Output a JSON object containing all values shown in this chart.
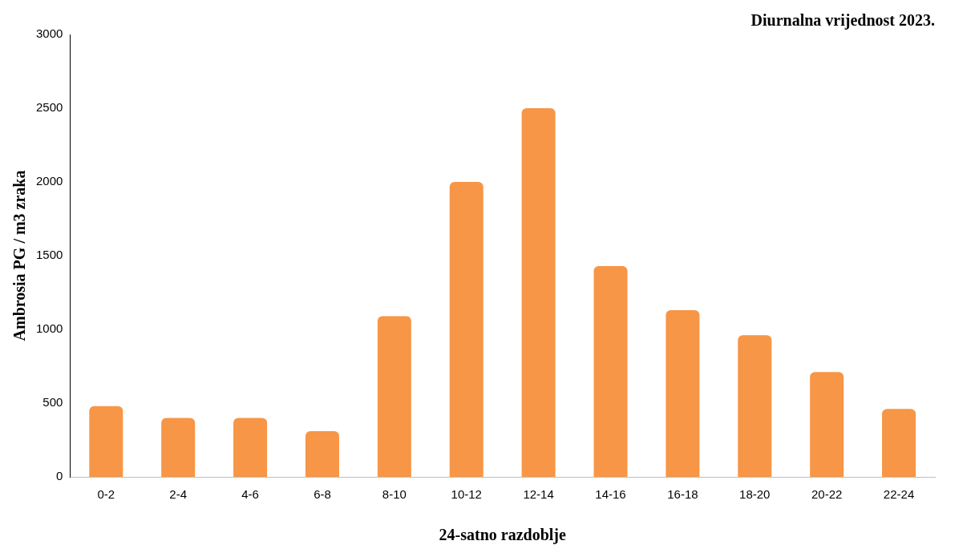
{
  "chart_data": {
    "type": "bar",
    "title": "Diurnalna vrijednost 2023.",
    "xlabel": "24-satno razdoblje",
    "ylabel": "Ambrosia PG / m3 zraka",
    "categories": [
      "0-2",
      "2-4",
      "4-6",
      "6-8",
      "8-10",
      "10-12",
      "12-14",
      "14-16",
      "16-18",
      "18-20",
      "20-22",
      "22-24"
    ],
    "values": [
      480,
      400,
      400,
      310,
      1090,
      2000,
      2500,
      1430,
      1130,
      960,
      710,
      460
    ],
    "color": "#f79646",
    "ylim": [
      0,
      3000
    ],
    "yticks": [
      0,
      500,
      1000,
      1500,
      2000,
      2500,
      3000
    ],
    "grid": false,
    "legend": false
  }
}
